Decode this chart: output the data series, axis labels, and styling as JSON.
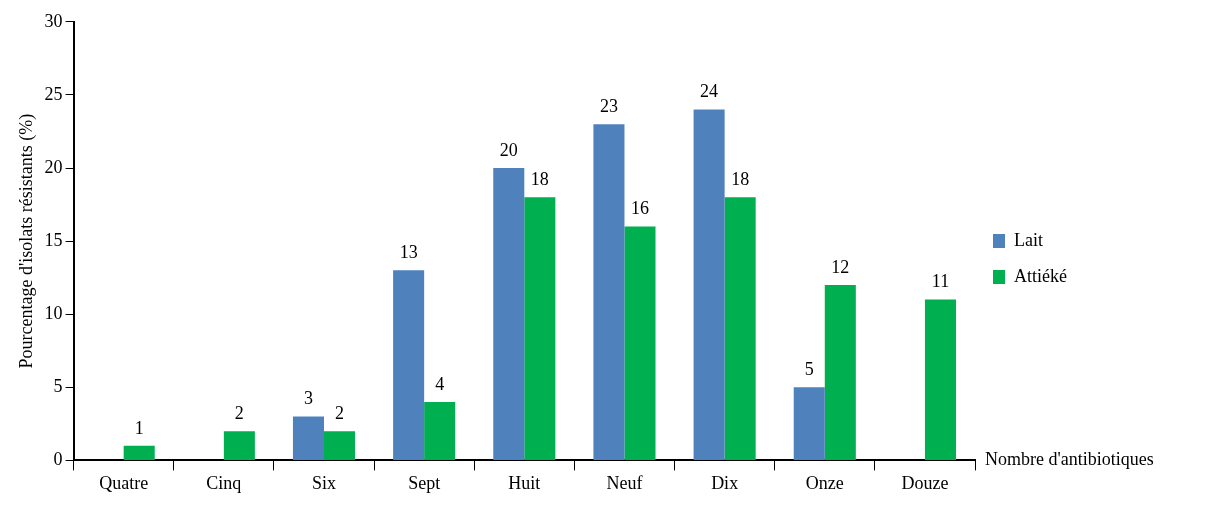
{
  "chart_data": {
    "type": "bar",
    "ylabel": "Pourcentage d'isolats résistants (%)",
    "xlabel": "Nombre d'antibiotiques",
    "categories": [
      "Quatre",
      "Cinq",
      "Six",
      "Sept",
      "Huit",
      "Neuf",
      "Dix",
      "Onze",
      "Douze"
    ],
    "series": [
      {
        "name": "Lait",
        "color": "#4f81bd",
        "values": [
          null,
          null,
          3,
          13,
          20,
          23,
          24,
          5,
          null
        ]
      },
      {
        "name": "Attiéké",
        "color": "#00b050",
        "values": [
          1,
          2,
          2,
          4,
          18,
          16,
          18,
          12,
          11
        ]
      }
    ],
    "ylim": [
      0,
      30
    ],
    "yticks": [
      0,
      5,
      10,
      15,
      20,
      25,
      30
    ],
    "grid": false,
    "legend": "right",
    "data_labels": true
  }
}
